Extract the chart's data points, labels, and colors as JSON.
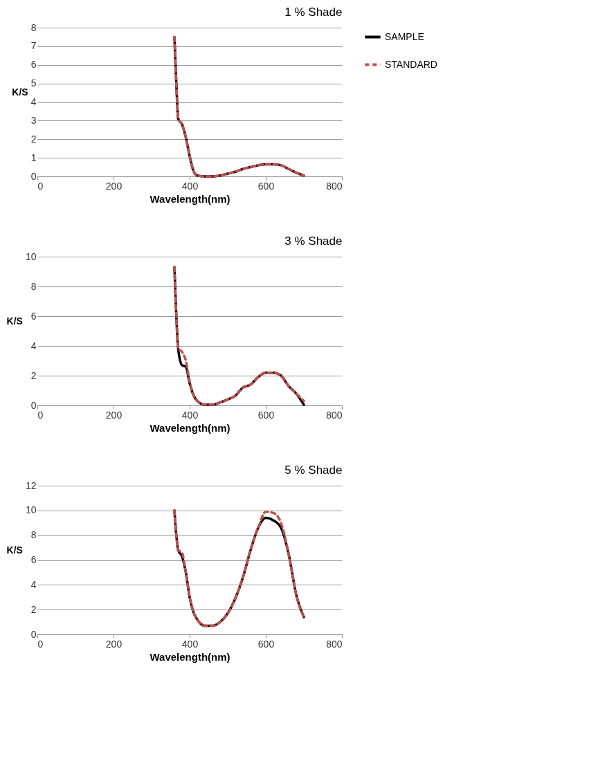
{
  "chart_data": [
    {
      "type": "line",
      "title": "1 % Shade",
      "xlabel": "Wavelength(nm)",
      "ylabel": "K/S",
      "xlim": [
        0,
        800
      ],
      "xticks": [
        0,
        200,
        400,
        600,
        800
      ],
      "ylim": [
        0,
        8
      ],
      "yticks": [
        0,
        1,
        2,
        3,
        4,
        5,
        6,
        7,
        8
      ],
      "grid": "y",
      "legend": "right",
      "x": [
        360,
        365,
        370,
        380,
        390,
        400,
        410,
        420,
        440,
        460,
        480,
        500,
        520,
        540,
        560,
        580,
        600,
        620,
        640,
        660,
        680,
        700
      ],
      "series": [
        {
          "name": "SAMPLE",
          "color": "#000000",
          "line_style": "solid",
          "values": [
            7.5,
            5.0,
            3.1,
            2.8,
            2.1,
            1.1,
            0.3,
            0.05,
            0.0,
            0.0,
            0.05,
            0.15,
            0.25,
            0.4,
            0.5,
            0.6,
            0.65,
            0.65,
            0.6,
            0.4,
            0.2,
            0.05
          ]
        },
        {
          "name": "STANDARD",
          "color": "#c0504d",
          "line_style": "dashed",
          "values": [
            7.5,
            5.0,
            3.1,
            2.8,
            2.1,
            1.1,
            0.3,
            0.05,
            0.0,
            0.0,
            0.05,
            0.15,
            0.25,
            0.4,
            0.5,
            0.6,
            0.65,
            0.65,
            0.6,
            0.4,
            0.2,
            0.05
          ]
        }
      ]
    },
    {
      "type": "line",
      "title": "3 % Shade",
      "xlabel": "Wavelength(nm)",
      "ylabel": "K/S",
      "xlim": [
        0,
        800
      ],
      "xticks": [
        0,
        200,
        400,
        600,
        800
      ],
      "ylim": [
        0,
        10
      ],
      "yticks": [
        0,
        2,
        4,
        6,
        8,
        10
      ],
      "grid": "y",
      "legend": "right",
      "x": [
        360,
        365,
        370,
        380,
        390,
        400,
        410,
        420,
        440,
        460,
        480,
        500,
        520,
        540,
        560,
        580,
        600,
        620,
        640,
        660,
        680,
        700
      ],
      "series": [
        {
          "name": "SAMPLE",
          "color": "#000000",
          "line_style": "solid",
          "values": [
            9.3,
            6.0,
            3.8,
            2.7,
            2.6,
            1.5,
            0.7,
            0.3,
            0.05,
            0.05,
            0.2,
            0.4,
            0.65,
            1.2,
            1.4,
            1.9,
            2.2,
            2.2,
            2.0,
            1.3,
            0.8,
            0.05
          ]
        },
        {
          "name": "STANDARD",
          "color": "#c0504d",
          "line_style": "dashed",
          "values": [
            9.3,
            6.0,
            3.8,
            3.6,
            3.0,
            1.6,
            0.7,
            0.3,
            0.05,
            0.05,
            0.2,
            0.4,
            0.65,
            1.2,
            1.4,
            1.9,
            2.2,
            2.2,
            2.0,
            1.3,
            0.8,
            0.3
          ]
        }
      ]
    },
    {
      "type": "line",
      "title": "5 % Shade",
      "xlabel": "Wavelength(nm)",
      "ylabel": "K/S",
      "xlim": [
        0,
        800
      ],
      "xticks": [
        0,
        200,
        400,
        600,
        800
      ],
      "ylim": [
        0,
        12
      ],
      "yticks": [
        0,
        2,
        4,
        6,
        8,
        10,
        12
      ],
      "grid": "y",
      "legend": "right",
      "x": [
        360,
        365,
        370,
        380,
        390,
        400,
        410,
        420,
        440,
        460,
        480,
        500,
        520,
        540,
        560,
        580,
        600,
        620,
        640,
        660,
        680,
        700
      ],
      "series": [
        {
          "name": "SAMPLE",
          "color": "#000000",
          "line_style": "solid",
          "values": [
            10.0,
            8.0,
            6.8,
            6.3,
            5.0,
            3.0,
            1.8,
            1.2,
            0.7,
            0.7,
            1.0,
            1.7,
            2.9,
            4.6,
            6.8,
            8.6,
            9.4,
            9.2,
            8.6,
            6.5,
            3.2,
            1.4
          ]
        },
        {
          "name": "STANDARD",
          "color": "#c0504d",
          "line_style": "dashed",
          "values": [
            10.0,
            8.0,
            6.8,
            6.6,
            5.0,
            3.0,
            1.8,
            1.2,
            0.7,
            0.7,
            1.0,
            1.7,
            2.9,
            4.6,
            6.8,
            8.6,
            9.9,
            9.8,
            9.0,
            6.5,
            3.2,
            1.4
          ]
        }
      ]
    }
  ]
}
